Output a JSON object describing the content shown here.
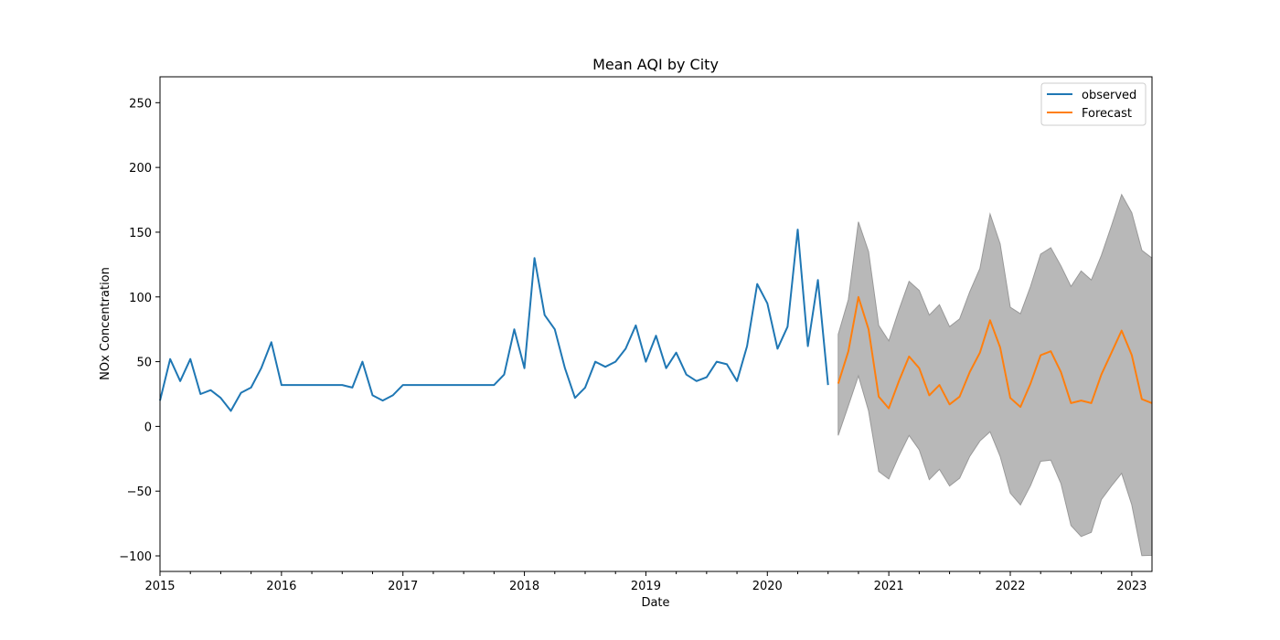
{
  "chart_data": {
    "type": "line",
    "title": "Mean AQI by City",
    "xlabel": "Date",
    "ylabel": "NOx Concentration",
    "xlim": [
      "2015-01",
      "2023-03"
    ],
    "ylim": [
      -112,
      270
    ],
    "x_ticks": [
      "2015",
      "2016",
      "2017",
      "2018",
      "2019",
      "2020",
      "2021",
      "2022",
      "2023"
    ],
    "y_ticks": [
      -100,
      -50,
      0,
      50,
      100,
      150,
      200,
      250
    ],
    "grid": false,
    "legend": {
      "placement": "upper-right",
      "entries": [
        "observed",
        "Forecast"
      ]
    },
    "colors": {
      "observed": "#1f77b4",
      "forecast": "#ff7f0e",
      "confidence": "#b8b8b8",
      "confidence_edge": "#999999"
    },
    "series": [
      {
        "name": "observed",
        "x": [
          "2015-01",
          "2015-02",
          "2015-03",
          "2015-04",
          "2015-05",
          "2015-06",
          "2015-07",
          "2015-08",
          "2015-09",
          "2015-10",
          "2015-11",
          "2015-12",
          "2016-01",
          "2016-02",
          "2016-03",
          "2016-04",
          "2016-05",
          "2016-06",
          "2016-07",
          "2016-08",
          "2016-09",
          "2016-10",
          "2016-11",
          "2016-12",
          "2017-01",
          "2017-02",
          "2017-03",
          "2017-04",
          "2017-05",
          "2017-06",
          "2017-07",
          "2017-08",
          "2017-09",
          "2017-10",
          "2017-11",
          "2017-12",
          "2018-01",
          "2018-02",
          "2018-03",
          "2018-04",
          "2018-05",
          "2018-06",
          "2018-07",
          "2018-08",
          "2018-09",
          "2018-10",
          "2018-11",
          "2018-12",
          "2019-01",
          "2019-02",
          "2019-03",
          "2019-04",
          "2019-05",
          "2019-06",
          "2019-07",
          "2019-08",
          "2019-09",
          "2019-10",
          "2019-11",
          "2019-12",
          "2020-01",
          "2020-02",
          "2020-03",
          "2020-04",
          "2020-05",
          "2020-06",
          "2020-07"
        ],
        "values": [
          20,
          52,
          35,
          52,
          25,
          28,
          22,
          12,
          26,
          30,
          45,
          65,
          32,
          32,
          32,
          32,
          32,
          32,
          32,
          30,
          50,
          24,
          20,
          24,
          32,
          32,
          32,
          32,
          32,
          32,
          32,
          32,
          32,
          32,
          40,
          75,
          45,
          130,
          86,
          75,
          45,
          22,
          30,
          50,
          46,
          50,
          60,
          78,
          50,
          70,
          45,
          57,
          40,
          35,
          38,
          50,
          48,
          35,
          62,
          110,
          95,
          60,
          77,
          152,
          62,
          113,
          32
        ]
      },
      {
        "name": "Forecast",
        "x": [
          "2020-08",
          "2020-09",
          "2020-10",
          "2020-11",
          "2020-12",
          "2021-01",
          "2021-02",
          "2021-03",
          "2021-04",
          "2021-05",
          "2021-06",
          "2021-07",
          "2021-08",
          "2021-09",
          "2021-10",
          "2021-11",
          "2021-12",
          "2022-01",
          "2022-02",
          "2022-03",
          "2022-04",
          "2022-05",
          "2022-06",
          "2022-07",
          "2022-08",
          "2022-09",
          "2022-10",
          "2022-11",
          "2022-12",
          "2023-01",
          "2023-02",
          "2023-03"
        ],
        "values": [
          33,
          58,
          100,
          75,
          23,
          14,
          35,
          54,
          45,
          24,
          32,
          17,
          23,
          42,
          57,
          82,
          61,
          22,
          15,
          33,
          55,
          58,
          42,
          18,
          20,
          18,
          40,
          57,
          74,
          55,
          21,
          18
        ]
      }
    ]
  }
}
